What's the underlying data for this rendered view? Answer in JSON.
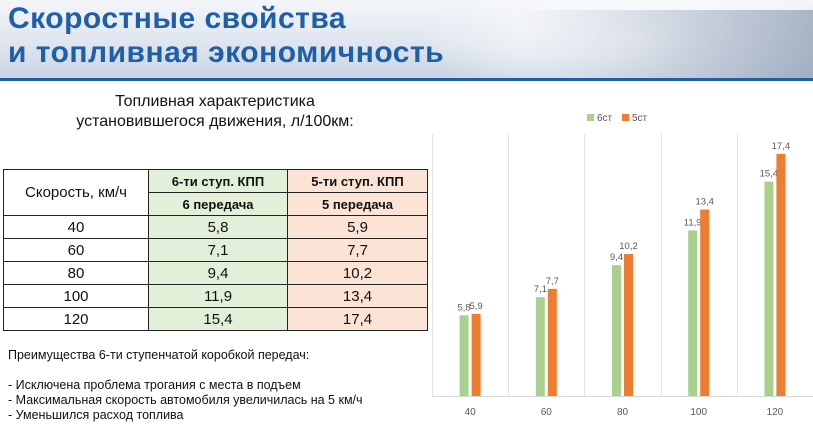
{
  "header": {
    "title": "Скоростные свойства\nи топливная экономичность"
  },
  "table": {
    "title": "Топливная характеристика\nустановившегося движения, л/100км:",
    "speed_header": "Скорость, км/ч",
    "col1_header": "6-ти ступ. КПП",
    "col1_sub": "6 передача",
    "col2_header": "5-ти ступ. КПП",
    "col2_sub": "5 передача",
    "rows": [
      {
        "speed": "40",
        "v6": "5,8",
        "v5": "5,9"
      },
      {
        "speed": "60",
        "v6": "7,1",
        "v5": "7,7"
      },
      {
        "speed": "80",
        "v6": "9,4",
        "v5": "10,2"
      },
      {
        "speed": "100",
        "v6": "11,9",
        "v5": "13,4"
      },
      {
        "speed": "120",
        "v6": "15,4",
        "v5": "17,4"
      }
    ]
  },
  "advantages": {
    "title": "Преимущества 6-ти ступенчатой коробкой передач:",
    "items": [
      "- Исключена проблема трогания с места в подъем",
      "- Максимальная скорость автомобиля увеличилась на 5 км/ч",
      "- Уменьшился расход топлива"
    ]
  },
  "colors": {
    "header_title": "#1f5ea8",
    "series_6": "#a9d18e",
    "series_5": "#ed7d31",
    "table_green": "#e3f0d9",
    "table_peach": "#fbe3d6"
  },
  "chart_data": {
    "type": "bar",
    "categories": [
      "40",
      "60",
      "80",
      "100",
      "120"
    ],
    "series": [
      {
        "name": "6ст",
        "values": [
          5.8,
          7.1,
          9.4,
          11.9,
          15.4
        ],
        "labels": [
          "5,8",
          "7,1",
          "9,4",
          "11,9",
          "15,4"
        ],
        "color": "#a9d18e"
      },
      {
        "name": "5ст",
        "values": [
          5.9,
          7.7,
          10.2,
          13.4,
          17.4
        ],
        "labels": [
          "5,9",
          "7,7",
          "10,2",
          "13,4",
          "17,4"
        ],
        "color": "#ed7d31"
      }
    ],
    "ylim": [
      0,
      19.4
    ],
    "grid": "vertical",
    "legend": "top-center",
    "title": "",
    "xlabel": "",
    "ylabel": ""
  }
}
